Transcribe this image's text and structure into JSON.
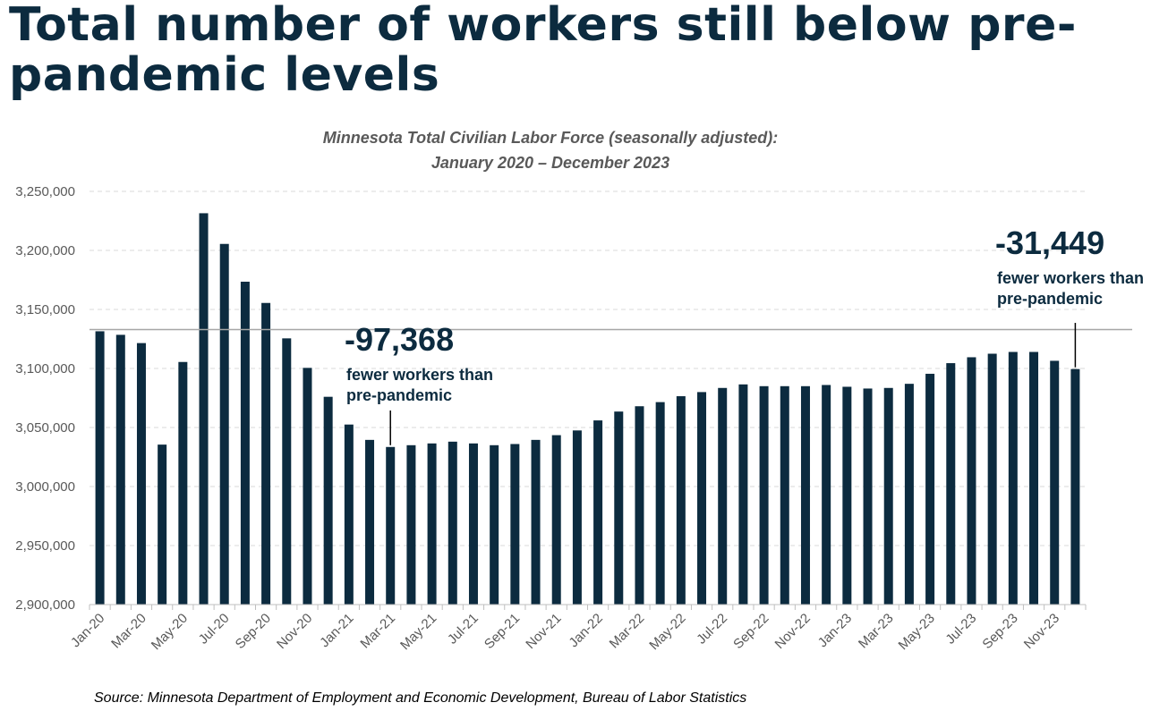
{
  "headline": "Total number of workers still below pre-pandemic levels",
  "source": "Source: Minnesota Department of Employment and Economic Development, Bureau of Labor Statistics",
  "colors": {
    "bar": "#0c2b3f",
    "title": "#0c2b3f",
    "reference_line": "#a6a6a6",
    "grid": "#d9d9d9"
  },
  "callouts": [
    {
      "value": "-97,368",
      "line1": "fewer workers than",
      "line2": "pre-pandemic",
      "category": "Mar-21"
    },
    {
      "value": "-31,449",
      "line1": "fewer workers than",
      "line2": "pre-pandemic",
      "category": "Dec-23"
    }
  ],
  "chart_data": {
    "type": "bar",
    "title_line1": "Minnesota Total Civilian Labor Force (seasonally adjusted):",
    "title_line2": "January 2020 – December 2023",
    "xlabel": "",
    "ylabel": "",
    "ylim": [
      2900000,
      3250000
    ],
    "yticks": [
      2900000,
      2950000,
      3000000,
      3050000,
      3100000,
      3150000,
      3200000,
      3250000
    ],
    "ytick_labels": [
      "2,900,000",
      "2,950,000",
      "3,000,000",
      "3,050,000",
      "3,100,000",
      "3,150,000",
      "3,200,000",
      "3,250,000"
    ],
    "grid": true,
    "reference_line": 3133000,
    "categories": [
      "Jan-20",
      "Feb-20",
      "Mar-20",
      "Apr-20",
      "May-20",
      "Jun-20",
      "Jul-20",
      "Aug-20",
      "Sep-20",
      "Oct-20",
      "Nov-20",
      "Dec-20",
      "Jan-21",
      "Feb-21",
      "Mar-21",
      "Apr-21",
      "May-21",
      "Jun-21",
      "Jul-21",
      "Aug-21",
      "Sep-21",
      "Oct-21",
      "Nov-21",
      "Dec-21",
      "Jan-22",
      "Feb-22",
      "Mar-22",
      "Apr-22",
      "May-22",
      "Jun-22",
      "Jul-22",
      "Aug-22",
      "Sep-22",
      "Oct-22",
      "Nov-22",
      "Dec-22",
      "Jan-23",
      "Feb-23",
      "Mar-23",
      "Apr-23",
      "May-23",
      "Jun-23",
      "Jul-23",
      "Aug-23",
      "Sep-23",
      "Oct-23",
      "Nov-23",
      "Dec-23"
    ],
    "tick_labels": [
      "Jan-20",
      "",
      "Mar-20",
      "",
      "May-20",
      "",
      "Jul-20",
      "",
      "Sep-20",
      "",
      "Nov-20",
      "",
      "Jan-21",
      "",
      "Mar-21",
      "",
      "May-21",
      "",
      "Jul-21",
      "",
      "Sep-21",
      "",
      "Nov-21",
      "",
      "Jan-22",
      "",
      "Mar-22",
      "",
      "May-22",
      "",
      "Jul-22",
      "",
      "Sep-22",
      "",
      "Nov-22",
      "",
      "Jan-23",
      "",
      "Mar-23",
      "",
      "May-23",
      "",
      "Jul-23",
      "",
      "Sep-23",
      "",
      "Nov-23",
      ""
    ],
    "values": [
      3131500,
      3128500,
      3121500,
      3035500,
      3105500,
      3231500,
      3205500,
      3173500,
      3155500,
      3125500,
      3100500,
      3076000,
      3052500,
      3039500,
      3033500,
      3035000,
      3036500,
      3038000,
      3036500,
      3035000,
      3036000,
      3039500,
      3043500,
      3047500,
      3056000,
      3063500,
      3068000,
      3071500,
      3076500,
      3080000,
      3083500,
      3086500,
      3085000,
      3085000,
      3085000,
      3086000,
      3084500,
      3083000,
      3083500,
      3087000,
      3095500,
      3104500,
      3109500,
      3112500,
      3114000,
      3114000,
      3106500,
      3099500
    ]
  }
}
